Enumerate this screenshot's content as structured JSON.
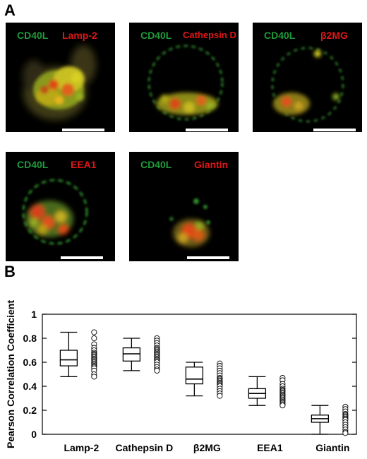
{
  "panels": {
    "a": "A",
    "b": "B"
  },
  "micrographs": [
    {
      "green": "CD40L",
      "red": "Lamp-2"
    },
    {
      "green": "CD40L",
      "red": "Cathepsin D"
    },
    {
      "green": "CD40L",
      "red": "β2MG"
    },
    {
      "green": "CD40L",
      "red": "EEA1"
    },
    {
      "green": "CD40L",
      "red": "Giantin"
    }
  ],
  "colors": {
    "green_channel": "#1f9a3a",
    "red_channel": "#e01616",
    "background": "#000000"
  },
  "chart_data": {
    "type": "box",
    "ylabel": "Pearson Correlation Coefficient",
    "ylim": [
      0,
      1
    ],
    "yticks": [
      0,
      0.2,
      0.4,
      0.6,
      0.8,
      1
    ],
    "ytick_labels": [
      "0",
      "0.2",
      "0.4",
      "0.6",
      "0.8",
      "1"
    ],
    "categories": [
      "Lamp-2",
      "Cathepsin D",
      "β2MG",
      "EEA1",
      "Giantin"
    ],
    "boxes": [
      {
        "min": 0.48,
        "q1": 0.57,
        "median": 0.62,
        "q3": 0.7,
        "max": 0.85
      },
      {
        "min": 0.53,
        "q1": 0.61,
        "median": 0.67,
        "q3": 0.72,
        "max": 0.8
      },
      {
        "min": 0.32,
        "q1": 0.42,
        "median": 0.46,
        "q3": 0.56,
        "max": 0.6
      },
      {
        "min": 0.24,
        "q1": 0.3,
        "median": 0.34,
        "q3": 0.38,
        "max": 0.48
      },
      {
        "min": 0.0,
        "q1": 0.1,
        "median": 0.13,
        "q3": 0.16,
        "max": 0.24
      }
    ],
    "points": [
      [
        0.85,
        0.8,
        0.75,
        0.72,
        0.7,
        0.68,
        0.67,
        0.66,
        0.65,
        0.64,
        0.63,
        0.62,
        0.61,
        0.6,
        0.59,
        0.58,
        0.57,
        0.56,
        0.55,
        0.53,
        0.5,
        0.48
      ],
      [
        0.8,
        0.78,
        0.76,
        0.74,
        0.72,
        0.71,
        0.7,
        0.69,
        0.68,
        0.67,
        0.66,
        0.65,
        0.64,
        0.63,
        0.62,
        0.61,
        0.6,
        0.58,
        0.56,
        0.54,
        0.53
      ],
      [
        0.59,
        0.57,
        0.55,
        0.53,
        0.51,
        0.49,
        0.47,
        0.46,
        0.45,
        0.44,
        0.43,
        0.42,
        0.41,
        0.4,
        0.38,
        0.36,
        0.34,
        0.32
      ],
      [
        0.47,
        0.45,
        0.42,
        0.4,
        0.38,
        0.37,
        0.36,
        0.35,
        0.34,
        0.33,
        0.32,
        0.31,
        0.3,
        0.29,
        0.28,
        0.27,
        0.26,
        0.25,
        0.24
      ],
      [
        0.23,
        0.21,
        0.19,
        0.17,
        0.16,
        0.15,
        0.14,
        0.13,
        0.12,
        0.1,
        0.08,
        0.06,
        0.04,
        0.02,
        0.01
      ]
    ],
    "grid": false,
    "legend": "none"
  }
}
